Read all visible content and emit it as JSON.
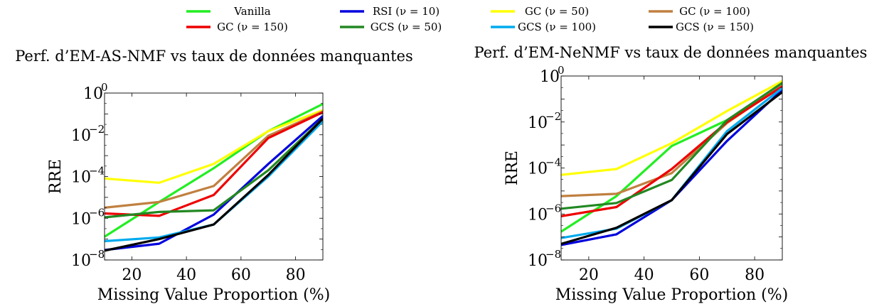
{
  "legend": {
    "items": [
      {
        "label": "Vanilla",
        "color": "#22ee22"
      },
      {
        "label": "RSI (ν = 10)",
        "color": "#0000dd"
      },
      {
        "label": "GC (ν = 50)",
        "color": "#ffff00"
      },
      {
        "label": "GC (ν = 100)",
        "color": "#c08040"
      },
      {
        "label": "GC (ν = 150)",
        "color": "#ee0000"
      },
      {
        "label": "GCS (ν = 50)",
        "color": "#228822"
      },
      {
        "label": "GCS (ν = 100)",
        "color": "#00aaee"
      },
      {
        "label": "GCS (ν = 150)",
        "color": "#000000"
      }
    ]
  },
  "chart_data": [
    {
      "type": "line",
      "title": "Perf. d’EM-AS-NMF vs taux de données manquantes",
      "xlabel": "Missing Value Proportion (%)",
      "ylabel": "RRE",
      "xlim": [
        10,
        90
      ],
      "ylim": [
        1e-08,
        1
      ],
      "yscale": "log",
      "xticks": [
        20,
        40,
        60,
        80
      ],
      "yticks": [
        {
          "base": "10",
          "exp": "−8",
          "value": -8
        },
        {
          "base": "10",
          "exp": "−6",
          "value": -6
        },
        {
          "base": "10",
          "exp": "−4",
          "value": -4
        },
        {
          "base": "10",
          "exp": "−2",
          "value": -2
        },
        {
          "base": "10",
          "exp": "0",
          "value": 0
        }
      ],
      "grid": false,
      "x": [
        10,
        30,
        50,
        70,
        90
      ],
      "series": [
        {
          "name": "Vanilla",
          "color": "#22ee22",
          "values": [
            1.3e-07,
            6e-06,
            0.00025,
            0.015,
            0.3
          ]
        },
        {
          "name": "RSI (ν = 10)",
          "color": "#0000dd",
          "values": [
            3e-08,
            6e-08,
            1.5e-06,
            0.0004,
            0.08
          ]
        },
        {
          "name": "GC (ν = 50)",
          "color": "#ffff00",
          "values": [
            8e-05,
            5e-05,
            0.0004,
            0.015,
            0.15
          ]
        },
        {
          "name": "GC (ν = 100)",
          "color": "#c08040",
          "values": [
            3.2e-06,
            6e-06,
            3.5e-05,
            0.009,
            0.13
          ]
        },
        {
          "name": "GC (ν = 150)",
          "color": "#ee0000",
          "values": [
            1.7e-06,
            1.3e-06,
            1.3e-05,
            0.007,
            0.12
          ]
        },
        {
          "name": "GCS (ν = 50)",
          "color": "#228822",
          "values": [
            1.1e-06,
            2e-06,
            2.4e-06,
            0.0002,
            0.06
          ]
        },
        {
          "name": "GCS (ν = 100)",
          "color": "#00aaee",
          "values": [
            8e-08,
            1.2e-07,
            5e-07,
            0.0001,
            0.045
          ]
        },
        {
          "name": "GCS (ν = 150)",
          "color": "#000000",
          "values": [
            2.8e-08,
            1e-07,
            5e-07,
            0.00012,
            0.06
          ]
        }
      ]
    },
    {
      "type": "line",
      "title": "Perf. d’EM-NeNMF vs taux de données manquantes",
      "xlabel": "Missing Value Proportion (%)",
      "ylabel": "RRE",
      "xlim": [
        10,
        90
      ],
      "ylim": [
        1e-08,
        1
      ],
      "yscale": "log",
      "xticks": [
        20,
        40,
        60,
        80
      ],
      "yticks": [
        {
          "base": "10",
          "exp": "−8",
          "value": -8
        },
        {
          "base": "10",
          "exp": "−6",
          "value": -6
        },
        {
          "base": "10",
          "exp": "−4",
          "value": -4
        },
        {
          "base": "10",
          "exp": "−2",
          "value": -2
        },
        {
          "base": "10",
          "exp": "0",
          "value": 0
        }
      ],
      "grid": false,
      "x": [
        10,
        30,
        50,
        70,
        90
      ],
      "series": [
        {
          "name": "Vanilla",
          "color": "#22ee22",
          "values": [
            1.7e-07,
            6e-06,
            0.0009,
            0.012,
            0.35
          ]
        },
        {
          "name": "RSI (ν = 10)",
          "color": "#0000dd",
          "values": [
            4.5e-08,
            1.3e-07,
            4e-06,
            0.0015,
            0.25
          ]
        },
        {
          "name": "GC (ν = 50)",
          "color": "#ffff00",
          "values": [
            5e-05,
            9e-05,
            0.0012,
            0.03,
            0.6
          ]
        },
        {
          "name": "GC (ν = 100)",
          "color": "#c08040",
          "values": [
            6e-06,
            7.5e-06,
            6e-05,
            0.009,
            0.4
          ]
        },
        {
          "name": "GC (ν = 150)",
          "color": "#ee0000",
          "values": [
            8e-07,
            2e-06,
            9e-05,
            0.01,
            0.35
          ]
        },
        {
          "name": "GCS (ν = 50)",
          "color": "#228822",
          "values": [
            1.7e-06,
            3e-06,
            3e-05,
            0.012,
            0.5
          ]
        },
        {
          "name": "GCS (ν = 100)",
          "color": "#00aaee",
          "values": [
            9e-08,
            2.3e-07,
            4e-06,
            0.004,
            0.3
          ]
        },
        {
          "name": "GCS (ν = 150)",
          "color": "#000000",
          "values": [
            5e-08,
            2.5e-07,
            4e-06,
            0.003,
            0.2
          ]
        }
      ]
    }
  ]
}
